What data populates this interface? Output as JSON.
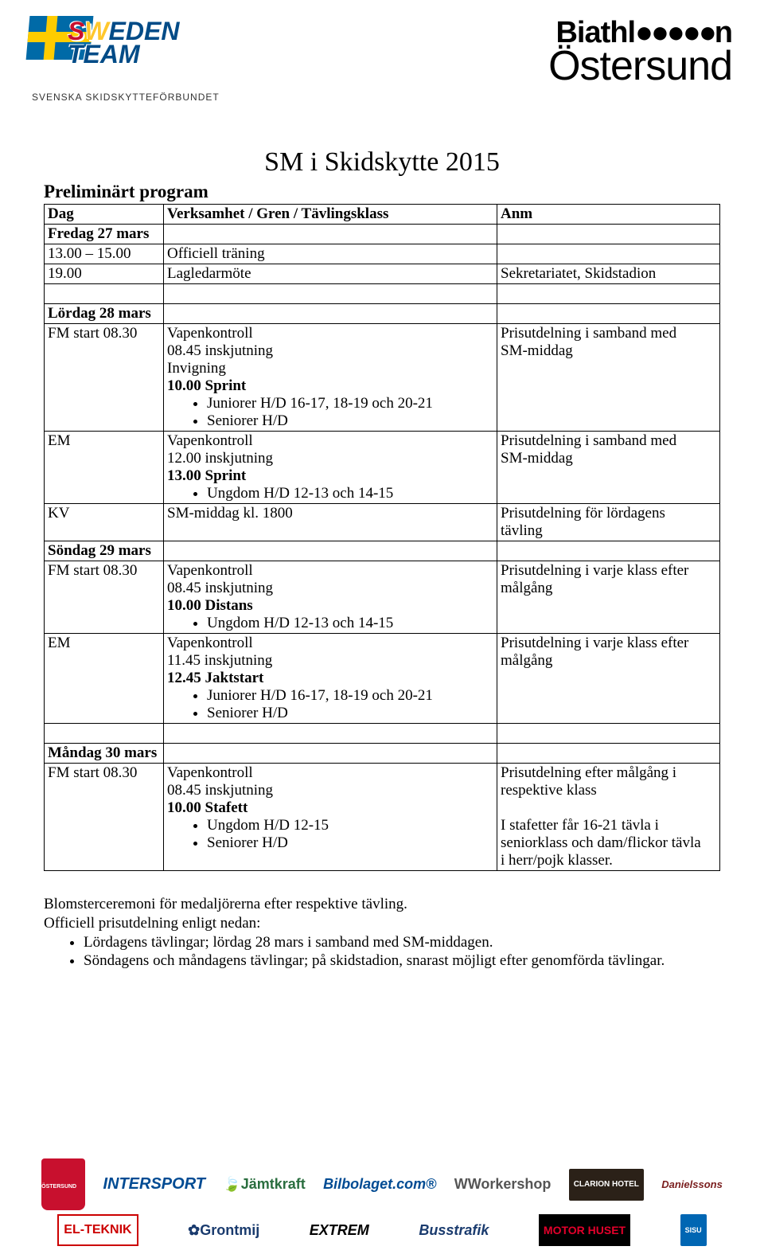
{
  "header": {
    "left_subtitle": "SVENSKA SKIDSKYTTEFÖRBUNDET",
    "biathlon_label": "Biathl",
    "ostersund_label": "Östersund"
  },
  "title": "SM i Skidskytte 2015",
  "subtitle": "Preliminärt program",
  "table": {
    "head": {
      "c1": "Dag",
      "c2": "Verksamhet / Gren / Tävlingsklass",
      "c3": "Anm"
    },
    "rows": [
      {
        "c1_bold": "Fredag 27 mars",
        "c2": "",
        "c3": ""
      },
      {
        "c1": "13.00 – 15.00",
        "c2": "Officiell träning",
        "c3": ""
      },
      {
        "c1": "19.00",
        "c2": "Lagledarmöte",
        "c3": "Sekretariatet, Skidstadion"
      },
      {
        "spacer": true
      },
      {
        "c1_bold": "Lördag 28 mars",
        "c2": "",
        "c3": ""
      },
      {
        "c1": "FM start 08.30",
        "c2_lines": [
          "Vapenkontroll",
          "08.45 inskjutning",
          "Invigning"
        ],
        "c2_bold": "10.00 Sprint",
        "c2_bullets": [
          "Juniorer H/D 16-17, 18-19 och 20-21",
          "Seniorer H/D"
        ],
        "c3_lines": [
          "Prisutdelning i samband med",
          "SM-middag"
        ]
      },
      {
        "c1": "EM",
        "c2_lines": [
          "Vapenkontroll",
          "12.00 inskjutning"
        ],
        "c2_bold": "13.00 Sprint",
        "c2_bullets": [
          "Ungdom H/D 12-13 och 14-15"
        ],
        "c3_lines": [
          "Prisutdelning i samband med",
          "SM-middag"
        ]
      },
      {
        "c1": "KV",
        "c2": "SM-middag kl. 1800",
        "c3_lines": [
          "Prisutdelning för lördagens",
          "tävling"
        ]
      },
      {
        "c1_bold": "Söndag 29 mars",
        "c2": "",
        "c3": ""
      },
      {
        "c1": "FM start 08.30",
        "c2_lines": [
          "Vapenkontroll",
          "08.45 inskjutning"
        ],
        "c2_bold": "10.00 Distans",
        "c2_bullets": [
          "Ungdom H/D 12-13 och 14-15"
        ],
        "c3_lines": [
          "Prisutdelning i varje klass efter",
          "målgång"
        ]
      },
      {
        "c1": "EM",
        "c2_lines": [
          "Vapenkontroll",
          "11.45 inskjutning"
        ],
        "c2_bold": "12.45 Jaktstart",
        "c2_bullets": [
          "Juniorer H/D 16-17, 18-19 och 20-21",
          "Seniorer H/D"
        ],
        "c3_lines": [
          "Prisutdelning i varje klass efter",
          "målgång"
        ]
      },
      {
        "spacer": true
      },
      {
        "c1_bold": "Måndag 30 mars",
        "c2": "",
        "c3": ""
      },
      {
        "c1": "FM start 08.30",
        "c2_lines": [
          "Vapenkontroll",
          "08.45 inskjutning"
        ],
        "c2_bold": "10.00 Stafett",
        "c2_bullets": [
          "Ungdom H/D 12-15",
          "Seniorer H/D"
        ],
        "c3_lines": [
          "Prisutdelning efter målgång i",
          "respektive klass",
          "",
          "I stafetter får 16-21 tävla i",
          "seniorklass och dam/flickor tävla",
          "i herr/pojk klasser."
        ]
      }
    ]
  },
  "bodytext": {
    "l1": "Blomsterceremoni för medaljörerna efter respektive tävling.",
    "l2": "Officiell prisutdelning enligt nedan:",
    "b1": "Lördagens tävlingar; lördag 28 mars i samband med SM-middagen.",
    "b2": "Söndagens och måndagens tävlingar; på skidstadion, snarast möjligt efter genomförda tävlingar."
  },
  "sponsors": {
    "ostersund_shield": "ÖSTERSUND",
    "intersport_a": "INTER",
    "intersport_b": "SPORT",
    "jamtkraft": "Jämtkraft",
    "bilbolaget": "Bilbolaget.com®",
    "workershop": "Workershop",
    "clarion": "CLARION HOTEL",
    "elteknik": "EL-TEKNIK",
    "grontmij": "Grontmij",
    "extrem": "EXTREM",
    "busstrafik": "Busstrafik",
    "motorhuset": "MOTOR HUSET",
    "sisu": "SISU"
  }
}
